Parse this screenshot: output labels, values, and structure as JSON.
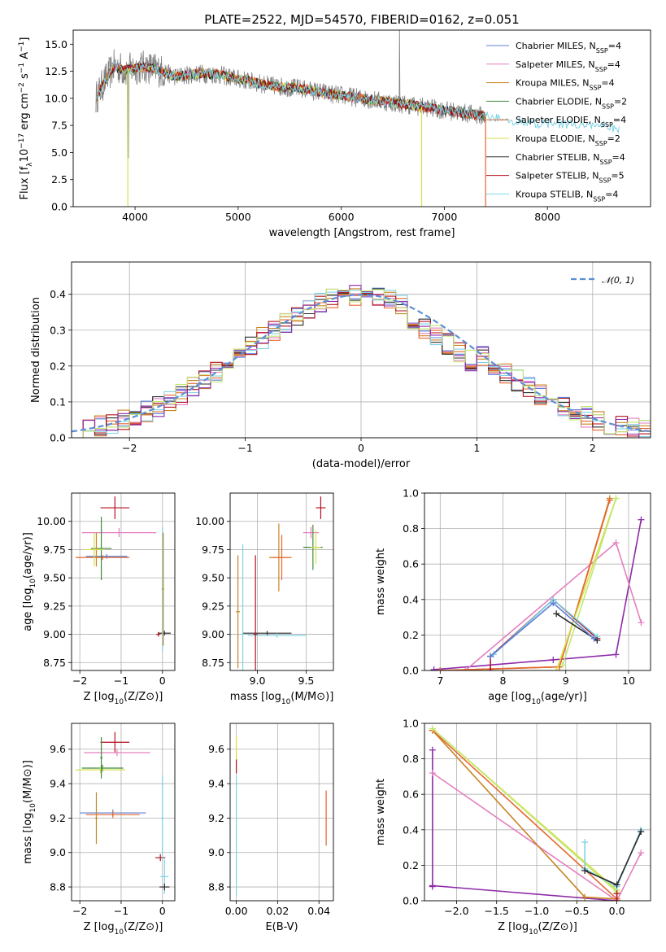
{
  "figure": {
    "title": "PLATE=2522, MJD=54570, FIBERID=0162, z=0.051"
  },
  "colors": {
    "models": [
      "#5c7fd6",
      "#e57fbf",
      "#c98525",
      "#3f8a3f",
      "#e5662e",
      "#d7e04a",
      "#2b2b2b",
      "#b2121f",
      "#7fd3e6"
    ],
    "data": "#808080",
    "purple": "#8e2ba8",
    "lime": "#c2e872",
    "gauss": "#5b8fd6"
  },
  "chart_data": [
    {
      "id": "spectrum",
      "type": "line",
      "xlabel": "wavelength [Angstrom, rest frame]",
      "ylabel": "Flux [f_λ10^-17 erg cm^-2 s^-1 A^-1]",
      "xlim": [
        3400,
        9000
      ],
      "ylim": [
        0,
        16.3
      ],
      "xticks": [
        4000,
        5000,
        6000,
        7000,
        8000
      ],
      "yticks": [
        0.0,
        2.5,
        5.0,
        7.5,
        10.0,
        12.5,
        15.0
      ],
      "xtick_labels": [
        "4000",
        "5000",
        "6000",
        "7000",
        "8000"
      ],
      "ytick_labels": [
        "0.0",
        "2.5",
        "5.0",
        "7.5",
        "10.0",
        "12.5",
        "15.0"
      ],
      "grid": false,
      "legend_position": "top-right",
      "legend": [
        {
          "label": "Chabrier MILES, N",
          "sub": "SSP",
          "suffix": "=4"
        },
        {
          "label": "Salpeter MILES, N",
          "sub": "SSP",
          "suffix": "=4"
        },
        {
          "label": "Kroupa MILES, N",
          "sub": "SSP",
          "suffix": "=4"
        },
        {
          "label": "Chabrier ELODIE, N",
          "sub": "SSP",
          "suffix": "=2"
        },
        {
          "label": "Salpeter ELODIE, N",
          "sub": "SSP",
          "suffix": "=4"
        },
        {
          "label": "Kroupa ELODIE, N",
          "sub": "SSP",
          "suffix": "=2"
        },
        {
          "label": "Chabrier STELIB, N",
          "sub": "SSP",
          "suffix": "=4"
        },
        {
          "label": "Salpeter STELIB, N",
          "sub": "SSP",
          "suffix": "=5"
        },
        {
          "label": "Kroupa STELIB, N",
          "sub": "SSP",
          "suffix": "=4"
        }
      ],
      "continuum": [
        [
          3620,
          10.0
        ],
        [
          3700,
          11.5
        ],
        [
          3800,
          13.0
        ],
        [
          3900,
          12.6
        ],
        [
          4000,
          12.8
        ],
        [
          4100,
          12.9
        ],
        [
          4200,
          12.7
        ],
        [
          4400,
          12.0
        ],
        [
          4600,
          12.3
        ],
        [
          4800,
          12.2
        ],
        [
          5000,
          11.8
        ],
        [
          5300,
          11.2
        ],
        [
          5600,
          10.9
        ],
        [
          5900,
          10.4
        ],
        [
          6200,
          10.0
        ],
        [
          6500,
          9.6
        ],
        [
          6800,
          9.2
        ],
        [
          7000,
          8.9
        ],
        [
          7300,
          8.5
        ],
        [
          7500,
          8.2
        ],
        [
          7800,
          7.7
        ],
        [
          8200,
          7.6
        ],
        [
          8500,
          7.5
        ],
        [
          8700,
          7.2
        ]
      ],
      "dips": [
        {
          "x": 3930,
          "y": 0
        },
        {
          "x": 6780,
          "y": 0
        },
        {
          "x": 7400,
          "y": 0
        }
      ]
    },
    {
      "id": "residuals",
      "type": "step",
      "xlabel": "(data-model)/error",
      "ylabel": "Normed distribution",
      "xlim": [
        -2.5,
        2.5
      ],
      "ylim": [
        0,
        0.49
      ],
      "xticks": [
        -2,
        -1,
        0,
        1,
        2
      ],
      "yticks": [
        0.0,
        0.1,
        0.2,
        0.3,
        0.4
      ],
      "xtick_labels": [
        "−2",
        "−1",
        "0",
        "1",
        "2"
      ],
      "ytick_labels": [
        "0.0",
        "0.1",
        "0.2",
        "0.3",
        "0.4"
      ],
      "grid": true,
      "legend_position": "top-right",
      "legend": [
        {
          "label": "𝒩(0, 1)",
          "style": "dashed"
        }
      ],
      "bin_width": 0.1
    },
    {
      "id": "age-vs-Z",
      "type": "scatter",
      "xlabel": "Z [log10(Z/Z⊙)]",
      "ylabel": "age  [log10(age/yr)]",
      "xlim": [
        -2.2,
        0.3
      ],
      "ylim": [
        8.68,
        10.25
      ],
      "xticks": [
        -2,
        -1,
        0
      ],
      "yticks": [
        8.75,
        9.0,
        9.25,
        9.5,
        9.75,
        10.0
      ],
      "xtick_labels": [
        "−2",
        "−1",
        "0"
      ],
      "ytick_labels": [
        "8.75",
        "9.00",
        "9.25",
        "9.50",
        "9.75",
        "10.00"
      ],
      "grid": true,
      "points": [
        {
          "c": 7,
          "x": -1.15,
          "y": 10.12,
          "xe": 0.35,
          "ye": 0.1
        },
        {
          "c": 1,
          "x": -1.05,
          "y": 9.9,
          "xe": 0.9,
          "ye": 0.04
        },
        {
          "c": 0,
          "x": -1.35,
          "y": 9.69,
          "xe": 0.5,
          "ye": 0.02
        },
        {
          "c": 4,
          "x": -1.45,
          "y": 9.68,
          "xe": 0.65,
          "ye": 0.02
        },
        {
          "c": 3,
          "x": -1.48,
          "y": 9.76,
          "xe": 0.25,
          "ye": 0.28
        },
        {
          "c": 2,
          "x": -1.6,
          "y": 9.75,
          "xe": 0.1,
          "ye": 0.15
        },
        {
          "c": 5,
          "x": -1.65,
          "y": 9.75,
          "xe": 0.25,
          "ye": 0.15
        },
        {
          "c": 6,
          "x": 0.05,
          "y": 9.01,
          "xe": 0.15,
          "ye": 0.02
        },
        {
          "c": 7,
          "x": -0.1,
          "y": 9.0,
          "xe": 0.05,
          "ye": 0.02
        },
        {
          "c": 8,
          "x": 0.0,
          "y": 9.4,
          "xe": 0.03,
          "ye": 0.55
        },
        {
          "c": 2,
          "x": 0.02,
          "y": 9.4,
          "xe": 0.02,
          "ye": 0.5
        }
      ]
    },
    {
      "id": "age-vs-mass",
      "type": "scatter",
      "xlabel": "mass [log10(M/M⊙)]",
      "ylabel": "",
      "xlim": [
        8.72,
        9.78
      ],
      "ylim": [
        8.68,
        10.25
      ],
      "xticks": [
        9.0,
        9.5
      ],
      "yticks": [
        8.75,
        9.0,
        9.25,
        9.5,
        9.75,
        10.0
      ],
      "xtick_labels": [
        "9.0",
        "9.5"
      ],
      "ytick_labels": [
        "8.75",
        "9.00",
        "9.25",
        "9.50",
        "9.75",
        "10.00"
      ],
      "grid": true,
      "points": [
        {
          "c": 7,
          "x": 9.65,
          "y": 10.12,
          "xe": 0.05,
          "ye": 0.1
        },
        {
          "c": 1,
          "x": 9.55,
          "y": 9.9,
          "xe": 0.08,
          "ye": 0.05
        },
        {
          "c": 3,
          "x": 9.57,
          "y": 9.77,
          "xe": 0.1,
          "ye": 0.2
        },
        {
          "c": 5,
          "x": 9.6,
          "y": 9.77,
          "xe": 0.05,
          "ye": 0.15
        },
        {
          "c": 2,
          "x": 9.22,
          "y": 9.68,
          "xe": 0.1,
          "ye": 0.3
        },
        {
          "c": 4,
          "x": 9.25,
          "y": 9.68,
          "xe": 0.1,
          "ye": 0.2
        },
        {
          "c": 6,
          "x": 9.1,
          "y": 9.01,
          "xe": 0.25,
          "ye": 0.02
        },
        {
          "c": 8,
          "x": 9.2,
          "y": 8.99,
          "xe": 0.3,
          "ye": 0.02
        },
        {
          "c": 7,
          "x": 8.98,
          "y": 9.0,
          "xe": 0.02,
          "ye": 0.7
        },
        {
          "c": 8,
          "x": 8.85,
          "y": 9.0,
          "xe": 0.02,
          "ye": 0.8
        },
        {
          "c": 2,
          "x": 8.8,
          "y": 9.2,
          "xe": 0.02,
          "ye": 0.5
        }
      ]
    },
    {
      "id": "weight-vs-age",
      "type": "line",
      "xlabel": "age  [log10(age/yr)]",
      "ylabel": "mass weight",
      "xlim": [
        6.75,
        10.35
      ],
      "ylim": [
        0,
        1
      ],
      "xticks": [
        7,
        8,
        9,
        10
      ],
      "yticks": [
        0.0,
        0.2,
        0.4,
        0.6,
        0.8,
        1.0
      ],
      "xtick_labels": [
        "7",
        "8",
        "9",
        "10"
      ],
      "ytick_labels": [
        "0.0",
        "0.2",
        "0.4",
        "0.6",
        "0.8",
        "1.0"
      ],
      "grid": true,
      "series": [
        {
          "c": "purple",
          "x": [
            6.9,
            8.8,
            9.8,
            10.2
          ],
          "y": [
            0.005,
            0.06,
            0.09,
            0.85
          ]
        },
        {
          "c": 1,
          "x": 7.4,
          "xs": [
            7.4,
            9.8,
            10.2
          ],
          "y": [
            0.0,
            0.72,
            0.27
          ]
        },
        {
          "c": 2,
          "x": [
            7.0,
            8.9,
            9.7
          ],
          "y": [
            0.0,
            0.02,
            0.97
          ]
        },
        {
          "c": 4,
          "x": [
            7.0,
            8.9,
            9.7
          ],
          "y": [
            0.0,
            0.02,
            0.96
          ]
        },
        {
          "c": 5,
          "x": [
            8.85,
            9.8
          ],
          "y": [
            0.0,
            0.97
          ]
        },
        {
          "c": "lime",
          "x": [
            8.95,
            9.8
          ],
          "y": [
            0.03,
            0.97
          ]
        },
        {
          "c": 7,
          "x": [
            7.8,
            7.8,
            8.8,
            9.5
          ],
          "y": [
            0.0,
            0.08,
            0.4,
            0.18
          ]
        },
        {
          "c": 8,
          "x": [
            7.85,
            8.8,
            9.5
          ],
          "y": [
            0.09,
            0.4,
            0.19
          ]
        },
        {
          "c": 6,
          "x": [
            8.85,
            9.5
          ],
          "y": [
            0.32,
            0.17
          ]
        },
        {
          "c": 0,
          "x": [
            7.8,
            8.8,
            9.45
          ],
          "y": [
            0.08,
            0.38,
            0.18
          ]
        }
      ]
    },
    {
      "id": "mass-vs-Z",
      "type": "scatter",
      "xlabel": "Z [log10(Z/Z⊙)]",
      "ylabel": "mass [log10(M/M⊙)]",
      "xlim": [
        -2.2,
        0.3
      ],
      "ylim": [
        8.72,
        9.75
      ],
      "xticks": [
        -2,
        -1,
        0
      ],
      "yticks": [
        8.8,
        9.0,
        9.2,
        9.4,
        9.6
      ],
      "xtick_labels": [
        "−2",
        "−1",
        "0"
      ],
      "ytick_labels": [
        "8.8",
        "9.0",
        "9.2",
        "9.4",
        "9.6"
      ],
      "grid": true,
      "points": [
        {
          "c": 7,
          "x": -1.15,
          "y": 9.64,
          "xe": 0.35,
          "ye": 0.06
        },
        {
          "c": 1,
          "x": -1.1,
          "y": 9.58,
          "xe": 0.8,
          "ye": 0.02
        },
        {
          "c": 3,
          "x": -1.45,
          "y": 9.49,
          "xe": 0.5,
          "ye": 0.02
        },
        {
          "c": 5,
          "x": -1.5,
          "y": 9.48,
          "xe": 0.6,
          "ye": 0.02
        },
        {
          "c": 3,
          "x": -1.48,
          "y": 9.55,
          "xe": 0.03,
          "ye": 0.12
        },
        {
          "c": 0,
          "x": -1.2,
          "y": 9.23,
          "xe": 0.8,
          "ye": 0.02
        },
        {
          "c": 4,
          "x": -1.2,
          "y": 9.22,
          "xe": 0.65,
          "ye": 0.02
        },
        {
          "c": 2,
          "x": -1.6,
          "y": 9.2,
          "xe": 0.03,
          "ye": 0.15
        },
        {
          "c": 7,
          "x": -0.05,
          "y": 8.97,
          "xe": 0.12,
          "ye": 0.02
        },
        {
          "c": 8,
          "x": 0.05,
          "y": 8.86,
          "xe": 0.1,
          "ye": 0.1
        },
        {
          "c": 6,
          "x": 0.05,
          "y": 8.8,
          "xe": 0.12,
          "ye": 0.02
        },
        {
          "c": 8,
          "x": 0.0,
          "y": 9.2,
          "xe": 0.03,
          "ye": 0.25
        }
      ]
    },
    {
      "id": "mass-vs-EBV",
      "type": "scatter",
      "xlabel": "E(B-V)",
      "ylabel": "",
      "xlim": [
        -0.003,
        0.047
      ],
      "ylim": [
        8.72,
        9.75
      ],
      "xticks": [
        0.0,
        0.02,
        0.04
      ],
      "yticks": [
        8.8,
        9.0,
        9.2,
        9.4,
        9.6
      ],
      "xtick_labels": [
        "0.00",
        "0.02",
        "0.04"
      ],
      "ytick_labels": [
        "8.8",
        "9.0",
        "9.2",
        "9.4",
        "9.6"
      ],
      "grid": true,
      "points": [
        {
          "c": 5,
          "x": 0.0,
          "y": 9.6,
          "xe": 0.0,
          "ye": 0.08
        },
        {
          "c": 7,
          "x": 0.0,
          "y": 9.5,
          "xe": 0.0,
          "ye": 0.04
        },
        {
          "c": 8,
          "x": 0.0,
          "y": 9.1,
          "xe": 0.0,
          "ye": 0.35
        },
        {
          "c": 4,
          "x": 0.0435,
          "y": 9.2,
          "xe": 0.0,
          "ye": 0.16
        }
      ]
    },
    {
      "id": "weight-vs-Z",
      "type": "line",
      "xlabel": "Z [log10(Z/Z⊙)]",
      "ylabel": "mass weight",
      "xlim": [
        -2.4,
        0.42
      ],
      "ylim": [
        0,
        1
      ],
      "xticks": [
        -2.0,
        -1.5,
        -1.0,
        -0.5,
        0.0
      ],
      "yticks": [
        0.0,
        0.2,
        0.4,
        0.6,
        0.8,
        1.0
      ],
      "xtick_labels": [
        "−2.0",
        "−1.5",
        "−1.0",
        "−0.5",
        "0.0"
      ],
      "ytick_labels": [
        "0.0",
        "0.2",
        "0.4",
        "0.6",
        "0.8",
        "1.0"
      ],
      "grid": true,
      "series": [
        {
          "c": "purple",
          "x": [
            -2.3,
            -2.3,
            -2.3,
            0.0
          ],
          "y": [
            0.85,
            0.08,
            0.085,
            0.0
          ]
        },
        {
          "c": 1,
          "x": [
            -2.3,
            0.0,
            0.3
          ],
          "y": [
            0.72,
            0.0,
            0.27
          ]
        },
        {
          "c": 2,
          "x": [
            -2.3,
            -0.4,
            0.0
          ],
          "y": [
            0.96,
            0.02,
            0.01
          ]
        },
        {
          "c": 4,
          "x": [
            -2.3,
            0.0
          ],
          "y": [
            0.96,
            0.01
          ]
        },
        {
          "c": 5,
          "x": [
            -2.3,
            0.0
          ],
          "y": [
            0.97,
            0.06
          ]
        },
        {
          "c": "lime",
          "x": [
            -2.3,
            0.0
          ],
          "y": [
            0.97,
            0.05
          ]
        },
        {
          "c": 8,
          "x": [
            -0.4,
            -0.4,
            0.0,
            0.3
          ],
          "y": [
            0.33,
            0.18,
            0.08,
            0.4
          ]
        },
        {
          "c": 6,
          "x": [
            -0.4,
            0.0,
            0.3
          ],
          "y": [
            0.17,
            0.09,
            0.39
          ]
        },
        {
          "c": 7,
          "x": [
            0.0,
            0.0
          ],
          "y": [
            0.0,
            0.04
          ]
        }
      ]
    }
  ]
}
